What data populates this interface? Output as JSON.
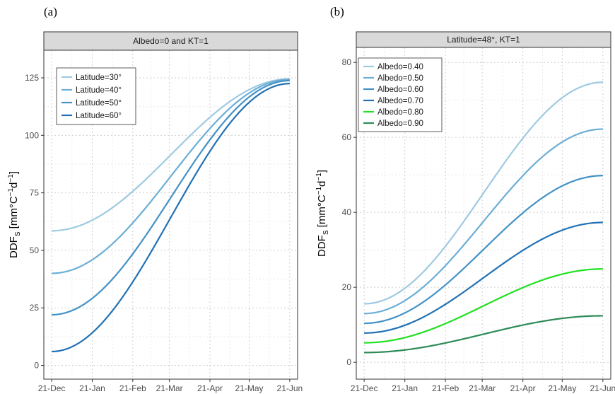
{
  "chart_data": [
    {
      "type": "line",
      "panel_label": "(a)",
      "title": "Albedo=0 and KT=1",
      "ylabel_main": "DDF",
      "ylabel_sub": "S",
      "ylabel_unit_open": " [mm°C",
      "ylabel_sup1": "−1",
      "ylabel_unit_mid": "d",
      "ylabel_sup2": "−1",
      "ylabel_unit_close": "]",
      "x_tick_labels": [
        "21-Dec",
        "21-Jan",
        "21-Feb",
        "21-Mar",
        "21-Apr",
        "21-May",
        "21-Jun"
      ],
      "x_tick_days": [
        0,
        31,
        62,
        90,
        121,
        151,
        182
      ],
      "xlim": [
        -6,
        188
      ],
      "ylim": [
        -6,
        137
      ],
      "y_ticks": [
        0,
        25,
        50,
        75,
        100,
        125
      ],
      "grid": true,
      "legend_position": "top-left",
      "series": [
        {
          "name": "Latitude=30°",
          "color": "#9ecae1",
          "start": 58.5,
          "end": 124.5
        },
        {
          "name": "Latitude=40°",
          "color": "#6baed6",
          "start": 40,
          "end": 124.3
        },
        {
          "name": "Latitude=50°",
          "color": "#4292c6",
          "start": 22,
          "end": 123.8
        },
        {
          "name": "Latitude=60°",
          "color": "#2171b5",
          "start": 6,
          "end": 122.5
        }
      ]
    },
    {
      "type": "line",
      "panel_label": "(b)",
      "title": "Latitude=48°, KT=1",
      "ylabel_main": "DDF",
      "ylabel_sub": "S",
      "ylabel_unit_open": " [mm°C",
      "ylabel_sup1": "−1",
      "ylabel_unit_mid": "d",
      "ylabel_sup2": "−1",
      "ylabel_unit_close": "]",
      "x_tick_labels": [
        "21-Dec",
        "21-Jan",
        "21-Feb",
        "21-Mar",
        "21-Apr",
        "21-May",
        "21-Jun"
      ],
      "x_tick_days": [
        0,
        31,
        62,
        90,
        121,
        151,
        182
      ],
      "xlim": [
        -6,
        188
      ],
      "ylim": [
        -4.5,
        84
      ],
      "y_ticks": [
        0,
        20,
        40,
        60,
        80
      ],
      "grid": true,
      "legend_position": "top-left",
      "series": [
        {
          "name": "Albedo=0.40",
          "color": "#9ecae1",
          "start": 15.6,
          "end": 74.7
        },
        {
          "name": "Albedo=0.50",
          "color": "#6baed6",
          "start": 13.0,
          "end": 62.2
        },
        {
          "name": "Albedo=0.60",
          "color": "#4292c6",
          "start": 10.4,
          "end": 49.8
        },
        {
          "name": "Albedo=0.70",
          "color": "#2171b5",
          "start": 7.8,
          "end": 37.3
        },
        {
          "name": "Albedo=0.80",
          "color": "#22e022",
          "start": 5.2,
          "end": 24.9
        },
        {
          "name": "Albedo=0.90",
          "color": "#2e8b57",
          "start": 2.6,
          "end": 12.4
        }
      ]
    }
  ]
}
